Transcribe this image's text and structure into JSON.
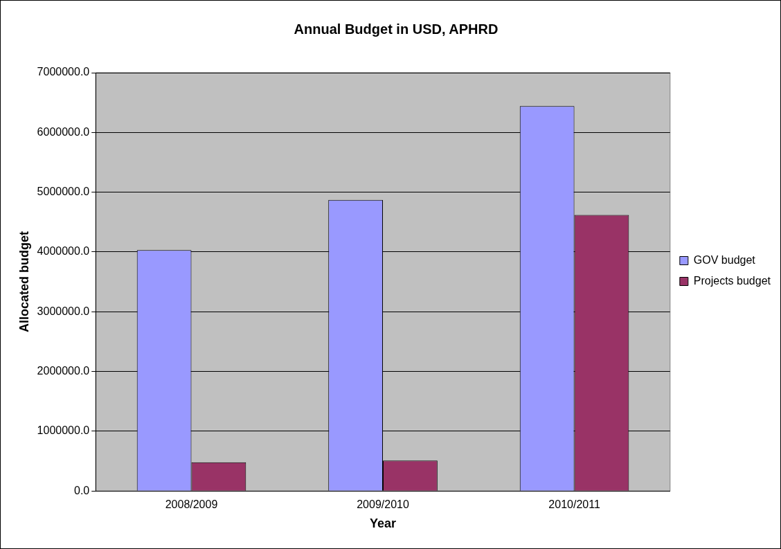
{
  "chart_data": {
    "type": "bar",
    "title": "Annual Budget in USD, APHRD",
    "xlabel": "Year",
    "ylabel": "Allocated budget",
    "categories": [
      "2008/2009",
      "2009/2010",
      "2010/2011"
    ],
    "series": [
      {
        "name": "GOV budget",
        "color": "#9999ff",
        "values": [
          4030000,
          4870000,
          6440000
        ]
      },
      {
        "name": "Projects budget",
        "color": "#993366",
        "values": [
          480000,
          510000,
          4620000
        ]
      }
    ],
    "ylim": [
      0,
      7000000
    ],
    "yticks": [
      {
        "value": 0,
        "label": "0.0"
      },
      {
        "value": 1000000,
        "label": "1000000.0"
      },
      {
        "value": 2000000,
        "label": "2000000.0"
      },
      {
        "value": 3000000,
        "label": "3000000.0"
      },
      {
        "value": 4000000,
        "label": "4000000.0"
      },
      {
        "value": 5000000,
        "label": "5000000.0"
      },
      {
        "value": 6000000,
        "label": "6000000.0"
      },
      {
        "value": 7000000,
        "label": "7000000.0"
      }
    ],
    "grid": "y",
    "legend": "right"
  }
}
